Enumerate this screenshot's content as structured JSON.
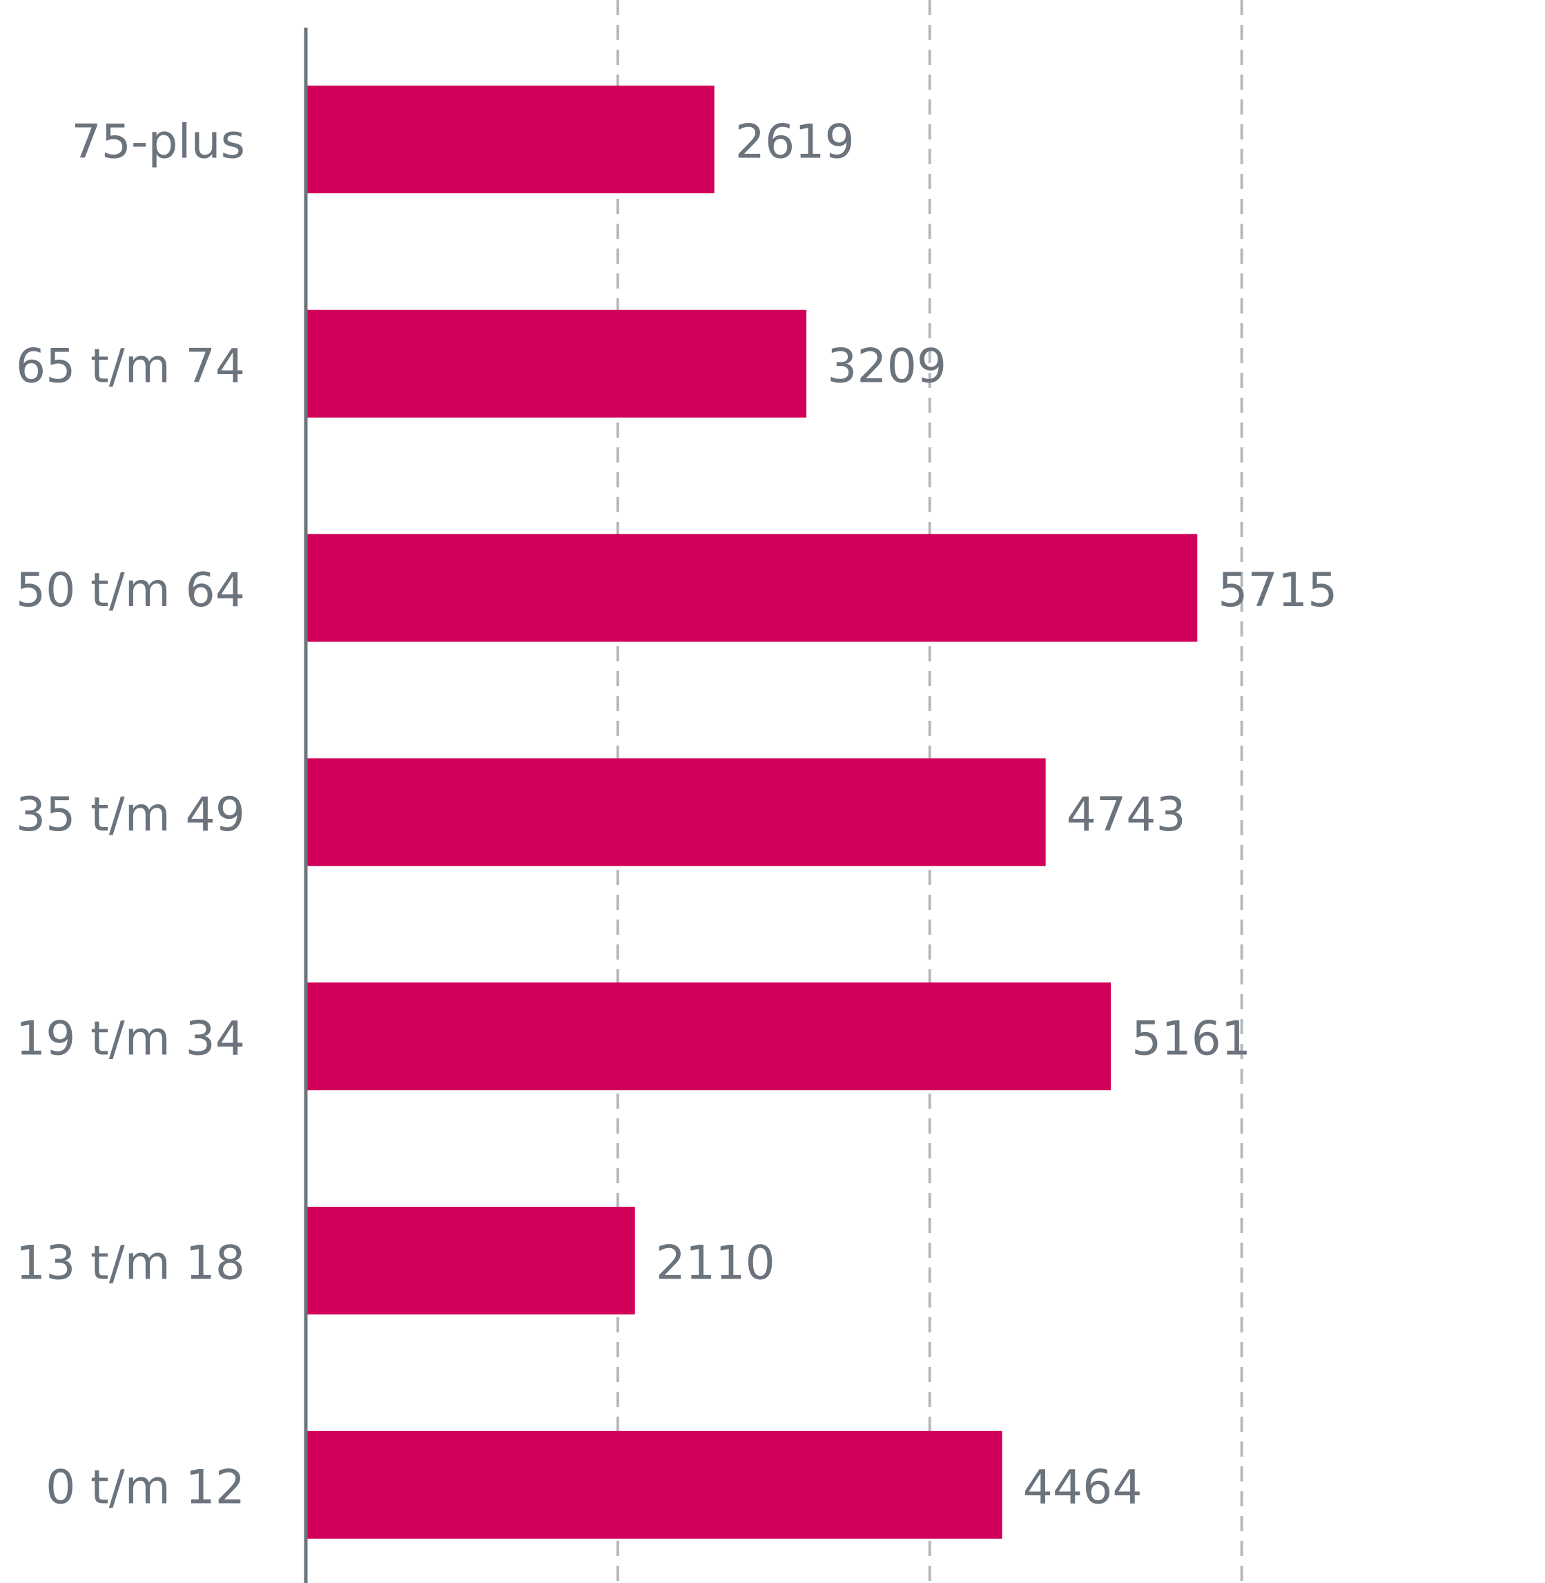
{
  "chart_data": {
    "type": "bar",
    "orientation": "horizontal",
    "categories": [
      "75-plus",
      "65 t/m 74",
      "50 t/m 64",
      "35 t/m 49",
      "19 t/m 34",
      "13 t/m 18",
      "0 t/m 12"
    ],
    "values": [
      2619,
      3209,
      5715,
      4743,
      5161,
      2110,
      4464
    ],
    "color": "#d1005a",
    "xlim": [
      0,
      7900
    ],
    "xticks": [
      0,
      2000,
      4000,
      6000
    ],
    "grid": true
  }
}
